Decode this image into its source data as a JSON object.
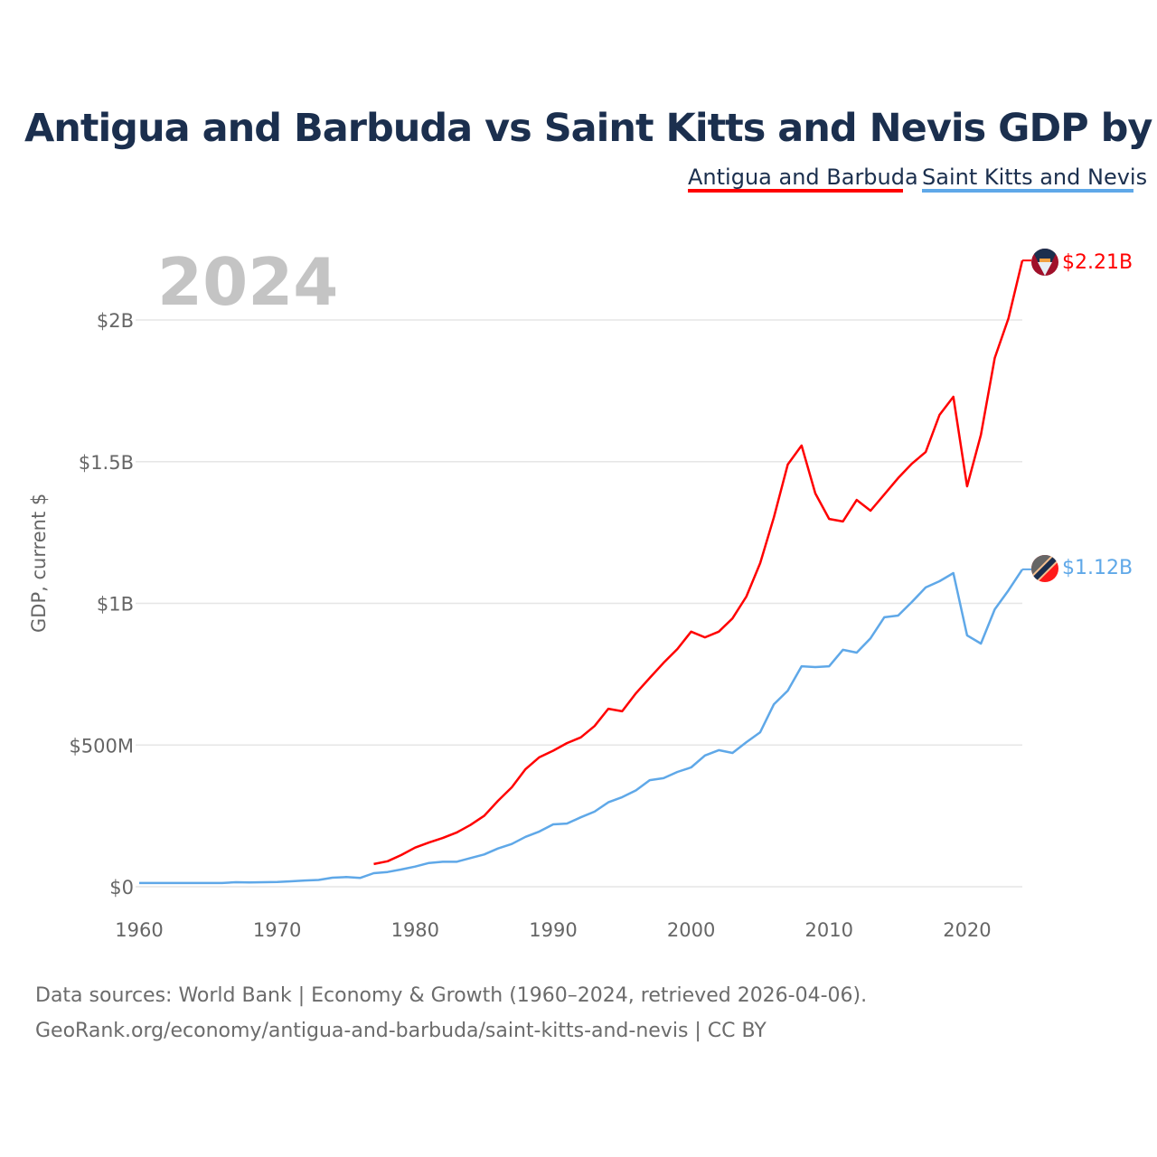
{
  "chart_data": {
    "type": "line",
    "title": "Antigua and Barbuda vs Saint Kitts and Nevis GDP by year",
    "xlabel": "",
    "ylabel": "GDP, current $",
    "xlim": [
      1960,
      2024
    ],
    "ylim": [
      0,
      2.3
    ],
    "x_ticks": [
      1960,
      1970,
      1980,
      1990,
      2000,
      2010,
      2020
    ],
    "y_ticks": [
      {
        "v": 0,
        "label": "$0"
      },
      {
        "v": 0.5,
        "label": "$500M"
      },
      {
        "v": 1,
        "label": "$1B"
      },
      {
        "v": 1.5,
        "label": "$1.5B"
      },
      {
        "v": 2,
        "label": "$2B"
      }
    ],
    "unit": "billions USD",
    "grid": true,
    "legend_position": "top-right",
    "current_year": "2024",
    "series": [
      {
        "name": "Antigua and Barbuda",
        "color": "#ff0000",
        "end_label": "$2.21B",
        "start_year": 1977,
        "values": [
          0.08,
          0.09,
          0.112,
          0.138,
          0.156,
          0.172,
          0.191,
          0.218,
          0.25,
          0.303,
          0.351,
          0.415,
          0.457,
          0.48,
          0.507,
          0.527,
          0.567,
          0.628,
          0.619,
          0.683,
          0.737,
          0.79,
          0.839,
          0.9,
          0.88,
          0.9,
          0.947,
          1.024,
          1.142,
          1.304,
          1.49,
          1.557,
          1.388,
          1.298,
          1.289,
          1.365,
          1.327,
          1.384,
          1.442,
          1.493,
          1.534,
          1.665,
          1.729,
          1.413,
          1.595,
          1.866,
          2.006,
          2.21
        ]
      },
      {
        "name": "Saint Kitts and Nevis",
        "color": "#5fa8e8",
        "end_label": "$1.12B",
        "start_year": 1960,
        "values": [
          0.013,
          0.013,
          0.013,
          0.013,
          0.013,
          0.013,
          0.013,
          0.016,
          0.015,
          0.016,
          0.017,
          0.019,
          0.022,
          0.024,
          0.032,
          0.034,
          0.031,
          0.048,
          0.052,
          0.061,
          0.071,
          0.084,
          0.088,
          0.088,
          0.101,
          0.114,
          0.135,
          0.151,
          0.176,
          0.195,
          0.22,
          0.223,
          0.245,
          0.265,
          0.298,
          0.316,
          0.34,
          0.376,
          0.383,
          0.405,
          0.421,
          0.463,
          0.482,
          0.472,
          0.51,
          0.545,
          0.644,
          0.692,
          0.778,
          0.775,
          0.778,
          0.836,
          0.826,
          0.877,
          0.951,
          0.957,
          1.005,
          1.056,
          1.078,
          1.107,
          0.887,
          0.858,
          0.979,
          1.046,
          1.12
        ]
      }
    ]
  },
  "footer": {
    "line1": "Data sources: World Bank | Economy & Growth (1960–2024, retrieved 2026-04-06).",
    "line2": "GeoRank.org/economy/antigua-and-barbuda/saint-kitts-and-nevis | CC BY"
  }
}
